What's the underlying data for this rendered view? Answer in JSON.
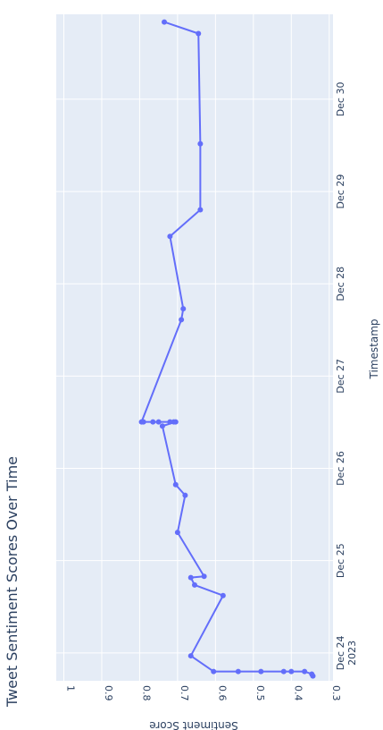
{
  "chart_data": {
    "type": "line",
    "title": "Tweet Sentiment Scores Over Time",
    "xlabel": "Timestamp",
    "ylabel": "Sentiment Score",
    "orientation": "rotated-90-clockwise",
    "grid": true,
    "x_ticks": [
      {
        "value": "2023-12-24T00:00",
        "label": "Dec 24",
        "sublabel": "2023"
      },
      {
        "value": "2023-12-25T00:00",
        "label": "Dec 25"
      },
      {
        "value": "2023-12-26T00:00",
        "label": "Dec 26"
      },
      {
        "value": "2023-12-27T00:00",
        "label": "Dec 27"
      },
      {
        "value": "2023-12-28T00:00",
        "label": "Dec 28"
      },
      {
        "value": "2023-12-29T00:00",
        "label": "Dec 29"
      },
      {
        "value": "2023-12-30T00:00",
        "label": "Dec 30"
      }
    ],
    "y_ticks": [
      {
        "value": 1.0,
        "label": "1"
      },
      {
        "value": 0.9,
        "label": "0.9"
      },
      {
        "value": 0.8,
        "label": "0.8"
      },
      {
        "value": 0.7,
        "label": "0.7"
      },
      {
        "value": 0.6,
        "label": "0.6"
      },
      {
        "value": 0.5,
        "label": "0.5"
      },
      {
        "value": 0.4,
        "label": "0.4"
      },
      {
        "value": 0.3,
        "label": "0.3"
      }
    ],
    "xlim": [
      "2023-12-23T16:45",
      "2023-12-30T22:05"
    ],
    "ylim": [
      1.02,
      0.29
    ],
    "series": [
      {
        "color": "#636efa",
        "points": [
          {
            "x": "2023-12-23T18:00",
            "y": 0.343
          },
          {
            "x": "2023-12-23T18:30",
            "y": 0.346
          },
          {
            "x": "2023-12-23T19:10",
            "y": 0.365
          },
          {
            "x": "2023-12-23T19:10",
            "y": 0.4
          },
          {
            "x": "2023-12-23T19:10",
            "y": 0.42
          },
          {
            "x": "2023-12-23T19:10",
            "y": 0.48
          },
          {
            "x": "2023-12-23T19:10",
            "y": 0.54
          },
          {
            "x": "2023-12-23T19:10",
            "y": 0.605
          },
          {
            "x": "2023-12-23T23:15",
            "y": 0.665
          },
          {
            "x": "2023-12-24T14:55",
            "y": 0.58
          },
          {
            "x": "2023-12-24T17:40",
            "y": 0.655
          },
          {
            "x": "2023-12-24T19:35",
            "y": 0.665
          },
          {
            "x": "2023-12-24T19:55",
            "y": 0.63
          },
          {
            "x": "2023-12-25T07:20",
            "y": 0.7
          },
          {
            "x": "2023-12-25T17:00",
            "y": 0.68
          },
          {
            "x": "2023-12-25T19:45",
            "y": 0.705
          },
          {
            "x": "2023-12-26T11:00",
            "y": 0.74
          },
          {
            "x": "2023-12-26T12:05",
            "y": 0.705
          },
          {
            "x": "2023-12-26T12:05",
            "y": 0.71
          },
          {
            "x": "2023-12-26T12:05",
            "y": 0.72
          },
          {
            "x": "2023-12-26T12:05",
            "y": 0.75
          },
          {
            "x": "2023-12-26T12:05",
            "y": 0.765
          },
          {
            "x": "2023-12-26T12:05",
            "y": 0.79
          },
          {
            "x": "2023-12-26T12:05",
            "y": 0.795
          },
          {
            "x": "2023-12-27T14:40",
            "y": 0.69
          },
          {
            "x": "2023-12-27T17:30",
            "y": 0.685
          },
          {
            "x": "2023-12-28T12:20",
            "y": 0.72
          },
          {
            "x": "2023-12-28T19:15",
            "y": 0.64
          },
          {
            "x": "2023-12-29T12:25",
            "y": 0.64
          },
          {
            "x": "2023-12-30T17:05",
            "y": 0.645
          },
          {
            "x": "2023-12-30T20:05",
            "y": 0.735
          }
        ]
      }
    ]
  }
}
